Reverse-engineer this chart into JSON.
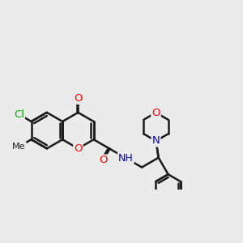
{
  "background_color": "#ebebeb",
  "bond_color": "#1a1a1a",
  "bond_width": 1.8,
  "atom_colors": {
    "O": "#ff0000",
    "N": "#0000cc",
    "Cl": "#00aa00",
    "C": "#1a1a1a"
  },
  "font_size": 9.5,
  "figsize": [
    3.0,
    3.0
  ],
  "dpi": 100
}
